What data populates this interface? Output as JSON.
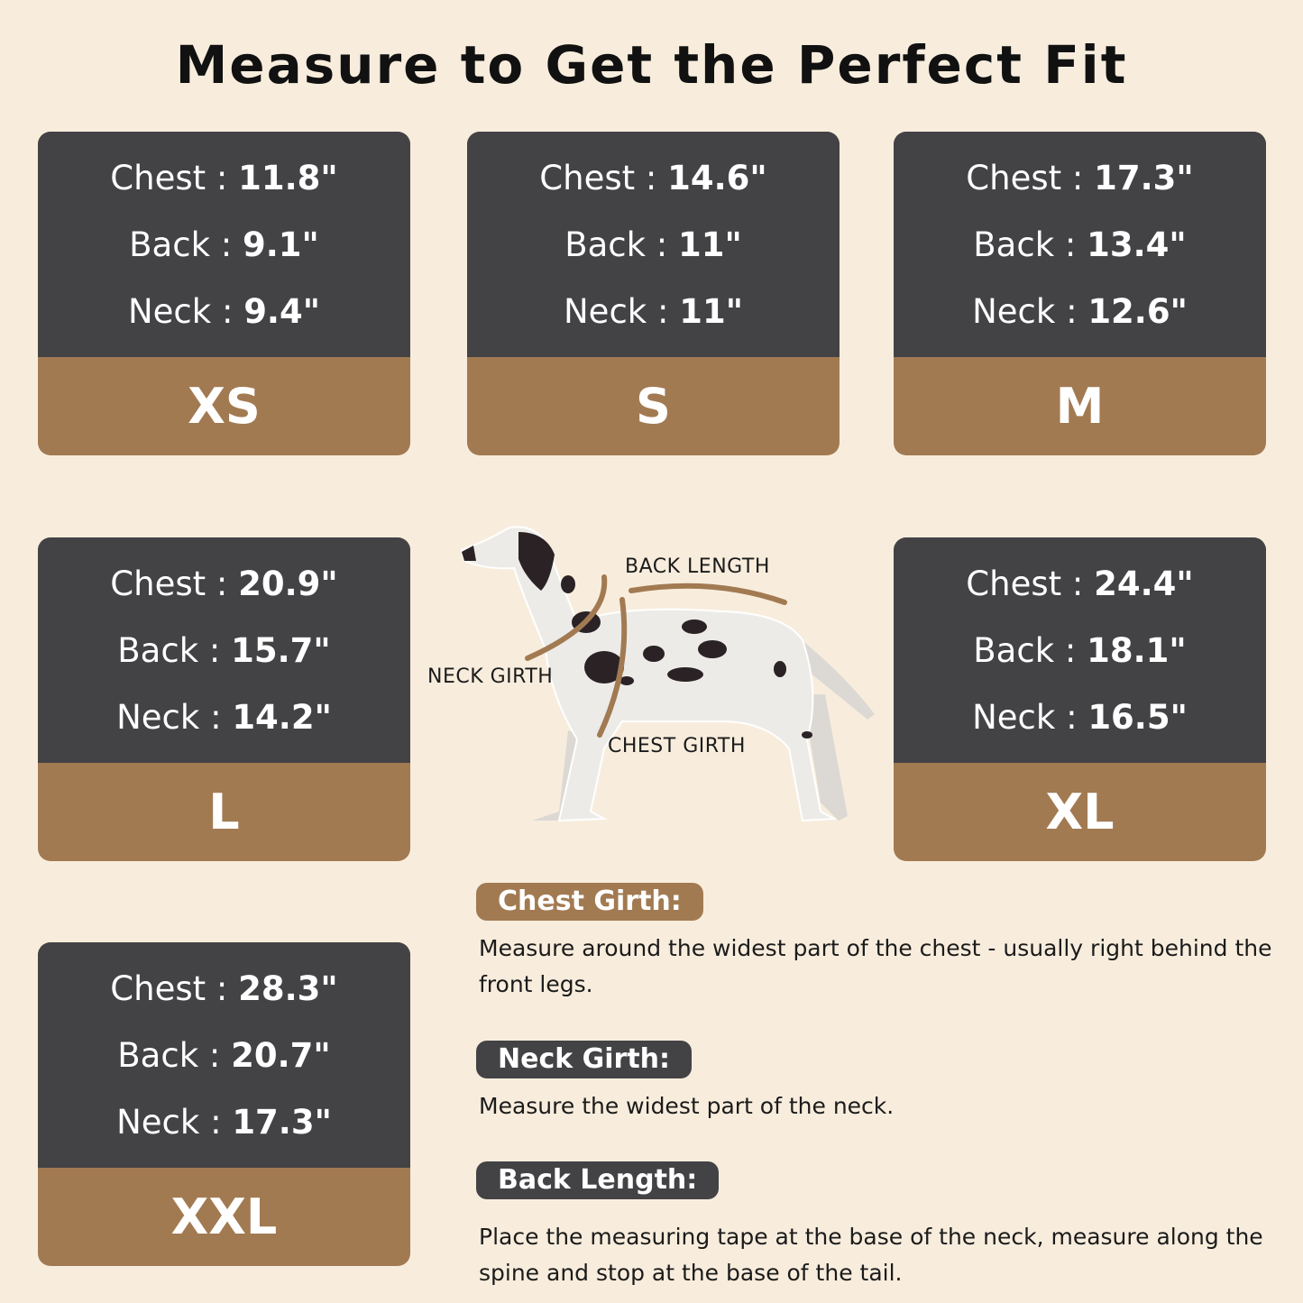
{
  "title": "Measure to Get the Perfect Fit",
  "colors": {
    "background": "#f8eddd",
    "card_dark": "#434346",
    "accent_brown": "#a27a52"
  },
  "sizes": [
    {
      "size": "XS",
      "chest_label": "Chest",
      "chest": "11.8\"",
      "back_label": "Back",
      "back": "9.1\"",
      "neck_label": "Neck",
      "neck": "9.4\""
    },
    {
      "size": "S",
      "chest_label": "Chest",
      "chest": "14.6\"",
      "back_label": "Back",
      "back": "11\"",
      "neck_label": "Neck",
      "neck": "11\""
    },
    {
      "size": "M",
      "chest_label": "Chest",
      "chest": "17.3\"",
      "back_label": "Back",
      "back": "13.4\"",
      "neck_label": "Neck",
      "neck": "12.6\""
    },
    {
      "size": "L",
      "chest_label": "Chest",
      "chest": "20.9\"",
      "back_label": "Back",
      "back": "15.7\"",
      "neck_label": "Neck",
      "neck": "14.2\""
    },
    {
      "size": "XL",
      "chest_label": "Chest",
      "chest": "24.4\"",
      "back_label": "Back",
      "back": "18.1\"",
      "neck_label": "Neck",
      "neck": "16.5\""
    },
    {
      "size": "XXL",
      "chest_label": "Chest",
      "chest": "28.3\"",
      "back_label": "Back",
      "back": "20.7\"",
      "neck_label": "Neck",
      "neck": "17.3\""
    }
  ],
  "diagram": {
    "back_length": "BACK LENGTH",
    "neck_girth": "NECK GIRTH",
    "chest_girth": "CHEST GIRTH"
  },
  "instructions": [
    {
      "heading": "Chest Girth:",
      "text": "Measure around the widest part of the chest - usually right behind the front legs."
    },
    {
      "heading": "Neck Girth:",
      "text": "Measure the widest part of the neck."
    },
    {
      "heading": "Back Length:",
      "text": "Place the measuring tape at the base of the neck, measure along the spine and stop at the base of the tail."
    }
  ]
}
